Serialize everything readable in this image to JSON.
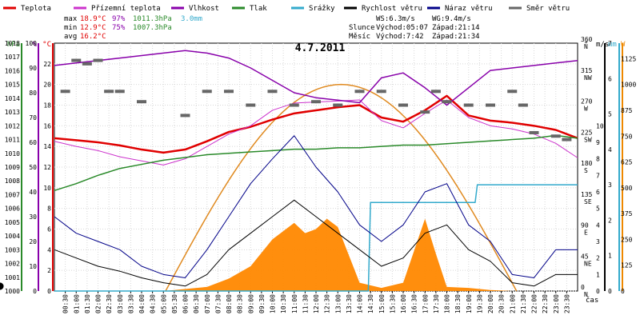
{
  "legend": [
    {
      "label": "Teplota",
      "color": "#e00000"
    },
    {
      "label": "Přízemní teplota",
      "color": "#cc33cc"
    },
    {
      "label": "Vlhkost",
      "color": "#8800aa"
    },
    {
      "label": "Tlak",
      "color": "#2a8a2a"
    },
    {
      "label": "Srážky",
      "color": "#33aacc"
    },
    {
      "label": "Rychlost větru",
      "color": "#000000"
    },
    {
      "label": "Náraz větru",
      "color": "#000088"
    },
    {
      "label": "Směr větru",
      "color": "#666666"
    }
  ],
  "stats": {
    "max": {
      "label": "max",
      "temp": "18.9°C",
      "hum": "97%",
      "press": "1011.3hPa",
      "rain": "3.0mm"
    },
    "min": {
      "label": "min",
      "temp": "12.9°C",
      "hum": "75%",
      "press": "1007.3hPa"
    },
    "avg": {
      "label": "avg",
      "temp": "16.2°C"
    }
  },
  "info": {
    "ws": "WS:6.3m/s",
    "wg": "WG:9.4m/s",
    "sun_label": "Slunce",
    "sunrise": "Východ:05:07",
    "sunset": "Západ:21:14",
    "moon_label": "Měsíc",
    "moonrise": "Východ:7:42",
    "moonset": "Západ:21:34"
  },
  "chart_data": {
    "type": "line",
    "title": "4.7.2011",
    "xlabel": "čas",
    "x_ticks": [
      "00:30",
      "01:00",
      "01:30",
      "02:00",
      "02:30",
      "03:00",
      "03:30",
      "04:00",
      "04:30",
      "05:00",
      "05:30",
      "06:00",
      "06:30",
      "07:00",
      "07:30",
      "08:00",
      "08:30",
      "09:00",
      "09:30",
      "10:00",
      "10:30",
      "11:00",
      "11:30",
      "12:00",
      "12:30",
      "13:00",
      "13:30",
      "14:00",
      "14:30",
      "15:00",
      "15:30",
      "16:00",
      "16:30",
      "17:00",
      "17:30",
      "18:00",
      "18:30",
      "19:00",
      "19:30",
      "20:00",
      "20:30",
      "21:00",
      "21:30",
      "22:00",
      "22:30",
      "23:00",
      "23:30"
    ],
    "axes": {
      "pressure": {
        "unit": "hPa",
        "range": [
          1000,
          1018
        ],
        "ticks": [
          "1000",
          "1001",
          "1002",
          "1003",
          "1004",
          "1005",
          "1006",
          "1007",
          "1008",
          "1009",
          "1010",
          "1011",
          "1012",
          "1013",
          "1014",
          "1015",
          "1016",
          "1017",
          "1018"
        ]
      },
      "humidity": {
        "unit": "%",
        "range": [
          0,
          100
        ],
        "ticks": [
          "0",
          "10",
          "20",
          "30",
          "40",
          "50",
          "60",
          "70",
          "80",
          "90",
          "100"
        ]
      },
      "temperature": {
        "unit": "°C",
        "range": [
          0,
          24
        ],
        "ticks": [
          "0",
          "2",
          "4",
          "6",
          "8",
          "10",
          "12",
          "14",
          "16",
          "18",
          "20",
          "22"
        ]
      },
      "direction": {
        "unit": "°",
        "ticks": [
          "0",
          "45",
          "90",
          "135",
          "180",
          "225",
          "270",
          "315",
          "360"
        ],
        "labels": [
          "N",
          "NE",
          "E",
          "SE",
          "S",
          "SW",
          "W",
          "NW",
          "N"
        ]
      },
      "wind": {
        "unit": "m/s",
        "range": [
          0,
          15
        ],
        "ticks": [
          "0",
          "1",
          "2",
          "3",
          "4",
          "5",
          "6",
          "7",
          "8",
          "9",
          "10"
        ]
      },
      "rain": {
        "unit": "mm",
        "range": [
          0,
          7
        ],
        "ticks": [
          "0",
          "1",
          "2",
          "3",
          "4",
          "5",
          "6",
          "7"
        ]
      },
      "solar": {
        "unit": "W",
        "range": [
          0,
          1200
        ],
        "ticks": [
          "0",
          "125",
          "250",
          "375",
          "500",
          "625",
          "750",
          "875",
          "1000",
          "1125"
        ]
      }
    },
    "series": [
      {
        "name": "Teplota",
        "axis": "temperature",
        "color": "#e00000",
        "x": [
          0,
          1,
          2,
          3,
          4,
          5,
          6,
          7,
          8,
          9,
          10,
          11,
          12,
          13,
          14,
          15,
          16,
          17,
          18,
          19,
          20,
          21,
          22,
          23,
          24
        ],
        "y": [
          14.8,
          14.6,
          14.4,
          14.1,
          13.7,
          13.4,
          13.7,
          14.5,
          15.4,
          15.9,
          16.6,
          17.2,
          17.5,
          17.8,
          18.0,
          16.8,
          16.4,
          17.5,
          18.9,
          17.0,
          16.5,
          16.3,
          16.0,
          15.6,
          14.8
        ]
      },
      {
        "name": "Přízemní teplota",
        "axis": "temperature",
        "color": "#cc33cc",
        "x": [
          0,
          1,
          2,
          3,
          4,
          5,
          6,
          7,
          8,
          9,
          10,
          11,
          12,
          13,
          14,
          15,
          16,
          17,
          18,
          19,
          20,
          21,
          22,
          23,
          24
        ],
        "y": [
          14.5,
          14.0,
          13.6,
          13.0,
          12.6,
          12.2,
          12.8,
          14.0,
          15.2,
          16.0,
          17.5,
          18.2,
          18.3,
          18.4,
          18.5,
          16.5,
          15.8,
          17.2,
          18.5,
          16.8,
          16.0,
          15.7,
          15.2,
          14.3,
          12.9
        ]
      },
      {
        "name": "Vlhkost",
        "axis": "humidity",
        "color": "#8800aa",
        "x": [
          0,
          1,
          2,
          3,
          4,
          5,
          6,
          7,
          8,
          9,
          10,
          11,
          12,
          13,
          14,
          15,
          16,
          17,
          18,
          19,
          20,
          21,
          22,
          23,
          24
        ],
        "y": [
          91,
          92,
          93,
          94,
          95,
          96,
          97,
          96,
          94,
          90,
          85,
          80,
          78,
          77,
          76,
          86,
          88,
          82,
          75,
          82,
          89,
          90,
          91,
          92,
          93
        ]
      },
      {
        "name": "Tlak",
        "axis": "pressure",
        "color": "#2a8a2a",
        "x": [
          0,
          1,
          2,
          3,
          4,
          5,
          6,
          7,
          8,
          9,
          10,
          11,
          12,
          13,
          14,
          15,
          16,
          17,
          18,
          19,
          20,
          21,
          22,
          23,
          24
        ],
        "y": [
          1007.3,
          1007.8,
          1008.4,
          1008.9,
          1009.2,
          1009.5,
          1009.7,
          1009.9,
          1010.0,
          1010.1,
          1010.2,
          1010.3,
          1010.3,
          1010.4,
          1010.4,
          1010.5,
          1010.6,
          1010.6,
          1010.7,
          1010.8,
          1010.9,
          1011.0,
          1011.1,
          1011.3,
          1011.1
        ]
      },
      {
        "name": "Srážky",
        "axis": "rain",
        "color": "#33aacc",
        "x": [
          0,
          14.4,
          14.5,
          15,
          19.3,
          19.4,
          24
        ],
        "y": [
          0,
          0,
          2.5,
          2.5,
          2.5,
          3.0,
          3.0
        ]
      },
      {
        "name": "Rychlost větru",
        "axis": "wind",
        "color": "#000000",
        "x": [
          0,
          1,
          2,
          3,
          4,
          5,
          6,
          7,
          8,
          9,
          10,
          11,
          12,
          13,
          14,
          15,
          16,
          17,
          18,
          19,
          20,
          21,
          22,
          23,
          24
        ],
        "y": [
          2.5,
          2.0,
          1.5,
          1.2,
          0.8,
          0.5,
          0.3,
          1.0,
          2.5,
          3.5,
          4.5,
          5.5,
          4.5,
          3.5,
          2.5,
          1.5,
          2.0,
          3.5,
          4.0,
          2.5,
          1.8,
          0.5,
          0.3,
          1.0,
          1.0
        ]
      },
      {
        "name": "Náraz větru",
        "axis": "wind",
        "color": "#000088",
        "x": [
          0,
          1,
          2,
          3,
          4,
          5,
          6,
          7,
          8,
          9,
          10,
          11,
          12,
          13,
          14,
          15,
          16,
          17,
          18,
          19,
          20,
          21,
          22,
          23,
          24
        ],
        "y": [
          4.5,
          3.5,
          3.0,
          2.5,
          1.5,
          1.0,
          0.8,
          2.5,
          4.5,
          6.5,
          8.0,
          9.4,
          7.5,
          6.0,
          4.0,
          3.0,
          4.0,
          6.0,
          6.5,
          4.0,
          3.0,
          1.0,
          0.8,
          2.5,
          2.5
        ]
      }
    ],
    "direction_points": [
      {
        "x": 0.5,
        "deg": 290
      },
      {
        "x": 1.0,
        "deg": 335
      },
      {
        "x": 1.5,
        "deg": 330
      },
      {
        "x": 2.0,
        "deg": 335
      },
      {
        "x": 2.5,
        "deg": 290
      },
      {
        "x": 3.0,
        "deg": 290
      },
      {
        "x": 4.0,
        "deg": 275
      },
      {
        "x": 6.0,
        "deg": 255
      },
      {
        "x": 7.0,
        "deg": 290
      },
      {
        "x": 8.0,
        "deg": 290
      },
      {
        "x": 9.0,
        "deg": 270
      },
      {
        "x": 10.0,
        "deg": 290
      },
      {
        "x": 11.0,
        "deg": 270
      },
      {
        "x": 12.0,
        "deg": 275
      },
      {
        "x": 13.0,
        "deg": 270
      },
      {
        "x": 14.0,
        "deg": 290
      },
      {
        "x": 15.0,
        "deg": 290
      },
      {
        "x": 16.0,
        "deg": 270
      },
      {
        "x": 17.0,
        "deg": 260
      },
      {
        "x": 17.5,
        "deg": 290
      },
      {
        "x": 18.0,
        "deg": 275
      },
      {
        "x": 19.0,
        "deg": 270
      },
      {
        "x": 20.0,
        "deg": 270
      },
      {
        "x": 21.0,
        "deg": 290
      },
      {
        "x": 21.5,
        "deg": 270
      },
      {
        "x": 22.0,
        "deg": 230
      },
      {
        "x": 23.0,
        "deg": 225
      },
      {
        "x": 23.5,
        "deg": 220
      }
    ],
    "solar_points": [
      {
        "x": 5.0,
        "y": 0
      },
      {
        "x": 7.0,
        "y": 20
      },
      {
        "x": 8.0,
        "y": 60
      },
      {
        "x": 9.0,
        "y": 120
      },
      {
        "x": 10.0,
        "y": 250
      },
      {
        "x": 11.0,
        "y": 330
      },
      {
        "x": 11.5,
        "y": 280
      },
      {
        "x": 12.0,
        "y": 300
      },
      {
        "x": 12.5,
        "y": 350
      },
      {
        "x": 13.0,
        "y": 310
      },
      {
        "x": 14.0,
        "y": 40
      },
      {
        "x": 15.0,
        "y": 15
      },
      {
        "x": 16.0,
        "y": 40
      },
      {
        "x": 17.0,
        "y": 350
      },
      {
        "x": 17.5,
        "y": 180
      },
      {
        "x": 18.0,
        "y": 20
      },
      {
        "x": 19.0,
        "y": 15
      },
      {
        "x": 20.0,
        "y": 5
      },
      {
        "x": 21.0,
        "y": 0
      }
    ],
    "solar_theory": {
      "start": 5.1,
      "end": 21.2,
      "peak": 1000
    },
    "grid": true
  }
}
